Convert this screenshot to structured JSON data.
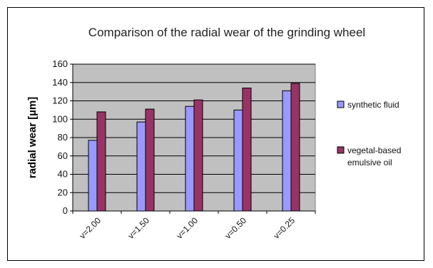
{
  "chart_data": {
    "type": "bar",
    "title": "Comparison of the radial wear of the grinding wheel",
    "xlabel": "",
    "ylabel": "radial wear  [µm]",
    "categories": [
      "v=2.00",
      "v=1.50",
      "v=1.00",
      "v=0.50",
      "v=0.25"
    ],
    "series": [
      {
        "name": "synthetic fluid",
        "values": [
          77,
          97,
          114,
          110,
          131
        ],
        "color": "#9999ff"
      },
      {
        "name": "vegetal-based emulsive oil",
        "values": [
          108,
          111,
          121,
          134,
          139
        ],
        "color": "#993366"
      }
    ],
    "ylim": [
      0,
      160
    ],
    "yticks": [
      0,
      20,
      40,
      60,
      80,
      100,
      120,
      140,
      160
    ],
    "grid": true,
    "plot_background": "#c0c0c0",
    "legend_position": "right"
  }
}
